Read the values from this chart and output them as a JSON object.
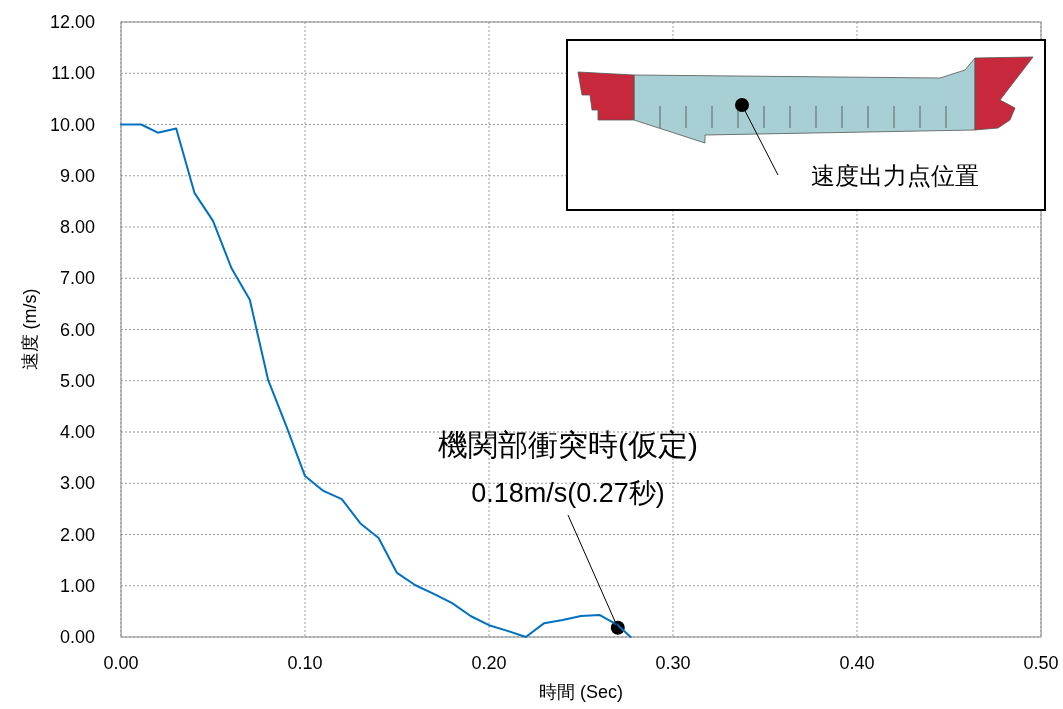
{
  "chart_data": {
    "type": "line",
    "xlabel": "時間 (Sec)",
    "ylabel": "速度 (m/s)",
    "x": [
      0,
      0.011,
      0.02,
      0.03,
      0.04,
      0.05,
      0.06,
      0.07,
      0.08,
      0.09,
      0.1,
      0.11,
      0.12,
      0.13,
      0.14,
      0.15,
      0.16,
      0.17,
      0.18,
      0.19,
      0.2,
      0.21,
      0.22,
      0.23,
      0.24,
      0.25,
      0.26,
      0.27,
      0.277
    ],
    "series": [
      {
        "color": "#0070c0",
        "values": [
          10.0,
          10.0,
          9.84,
          9.92,
          8.66,
          8.12,
          7.2,
          6.58,
          5.01,
          4.1,
          3.14,
          2.85,
          2.69,
          2.22,
          1.93,
          1.25,
          1.01,
          0.84,
          0.66,
          0.41,
          0.23,
          0.12,
          0.0,
          0.27,
          0.33,
          0.41,
          0.43,
          0.23,
          0.0
        ]
      }
    ],
    "xlim": [
      0,
      0.5
    ],
    "ylim": [
      0,
      12
    ],
    "xticks": [
      {
        "value": 0,
        "label": "0.00"
      },
      {
        "value": 0.1,
        "label": "0.10"
      },
      {
        "value": 0.2,
        "label": "0.20"
      },
      {
        "value": 0.3,
        "label": "0.30"
      },
      {
        "value": 0.4,
        "label": "0.40"
      },
      {
        "value": 0.5,
        "label": "0.50"
      }
    ],
    "yticks": [
      {
        "value": 0,
        "label": "0.00"
      },
      {
        "value": 1,
        "label": "1.00"
      },
      {
        "value": 2,
        "label": "2.00"
      },
      {
        "value": 3,
        "label": "3.00"
      },
      {
        "value": 4,
        "label": "4.00"
      },
      {
        "value": 5,
        "label": "5.00"
      },
      {
        "value": 6,
        "label": "6.00"
      },
      {
        "value": 7,
        "label": "7.00"
      },
      {
        "value": 8,
        "label": "8.00"
      },
      {
        "value": 9,
        "label": "9.00"
      },
      {
        "value": 10,
        "label": "10.00"
      },
      {
        "value": 11,
        "label": "11.00"
      },
      {
        "value": 12,
        "label": "12.00"
      }
    ],
    "grid": true,
    "marker": "none",
    "line_style": "solid",
    "annotations": [
      "機関部衝突時(仮定)",
      {
        "text": "0.18m/s(0.27秒)",
        "x": 0.27,
        "y": 0.18
      },
      "速度出力点位置"
    ]
  }
}
